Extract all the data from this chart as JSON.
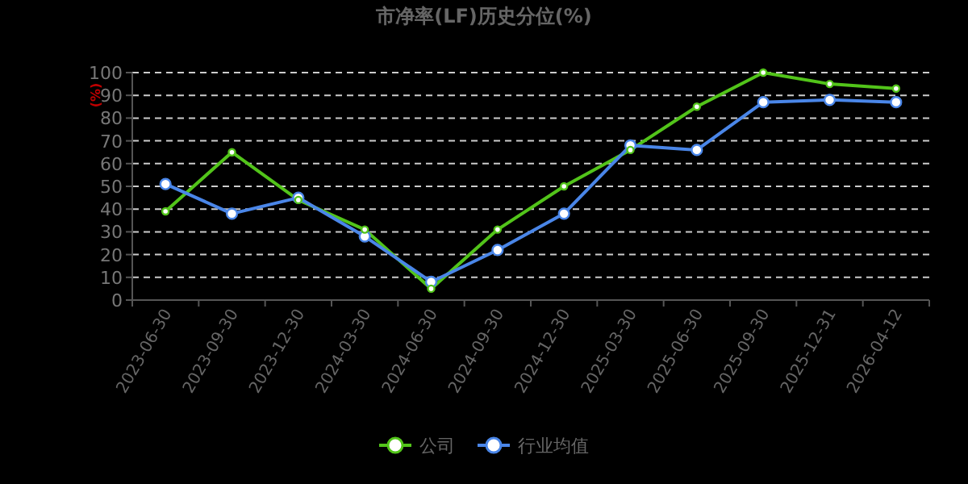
{
  "chart_data": {
    "type": "line",
    "title": "市净率(LF)历史分位(%)",
    "ylabel": "(%)",
    "categories": [
      "2023-06-30",
      "2023-09-30",
      "2023-12-30",
      "2024-03-30",
      "2024-06-30",
      "2024-09-30",
      "2024-12-30",
      "2025-03-30",
      "2025-06-30",
      "2025-09-30",
      "2025-12-31",
      "2026-04-12"
    ],
    "series": [
      {
        "name": "公司",
        "color": "#52c41a",
        "values": [
          39,
          65,
          44,
          31,
          5,
          31,
          50,
          66,
          85,
          100,
          95,
          93
        ]
      },
      {
        "name": "行业均值",
        "color": "#4a86e8",
        "values": [
          51,
          38,
          45,
          28,
          8,
          22,
          38,
          68,
          66,
          87,
          88,
          87
        ]
      }
    ],
    "ylim": [
      0,
      100
    ],
    "yticks": [
      0,
      10,
      20,
      30,
      40,
      50,
      60,
      70,
      80,
      90,
      100
    ],
    "grid": "y",
    "legend": "bottom",
    "marker": "circle"
  }
}
